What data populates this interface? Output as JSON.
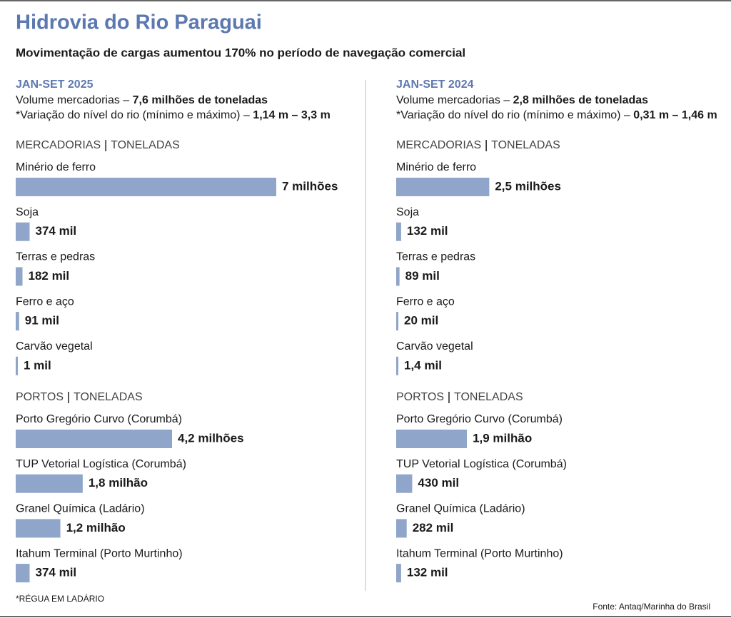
{
  "title": "Hidrovia do Rio Paraguai",
  "subtitle": "Movimentação de cargas aumentou 170% no período de navegação comercial",
  "periods": [
    {
      "heading": "JAN-SET 2025",
      "volume": {
        "label": "Volume mercadorias –",
        "value": "7,6 milhões de toneladas"
      },
      "river": {
        "label": "*Variação do nível do rio (mínimo e máximo) –",
        "value": "1,14 m – 3,3 m"
      }
    },
    {
      "heading": "JAN-SET 2024",
      "volume": {
        "label": "Volume mercadorias –",
        "value": "2,8 milhões de toneladas"
      },
      "river": {
        "label": "*Variação do nível do rio (mínimo e máximo) –",
        "value": "0,31 m – 1,46 m"
      }
    }
  ],
  "chart_data": [
    {
      "type": "bar",
      "orientation": "horizontal",
      "title": "MERCADORIAS",
      "unit": "TONELADAS",
      "color": "#8fa5c9",
      "categories": [
        "Minério de ferro",
        "Soja",
        "Terras e pedras",
        "Ferro e aço",
        "Carvão vegetal"
      ],
      "values": [
        7000000,
        374000,
        182000,
        91000,
        1000
      ],
      "value_labels": [
        "7 milhões",
        "374 mil",
        "182 mil",
        "91 mil",
        "1 mil"
      ]
    },
    {
      "type": "bar",
      "orientation": "horizontal",
      "title": "PORTOS",
      "unit": "TONELADAS",
      "color": "#8fa5c9",
      "categories": [
        "Porto Gregório Curvo (Corumbá)",
        "TUP Vetorial Logística (Corumbá)",
        "Granel Química (Ladário)",
        "Itahum Terminal (Porto Murtinho)"
      ],
      "values": [
        4200000,
        1800000,
        1200000,
        374000
      ],
      "value_labels": [
        "4,2 milhões",
        "1,8 milhão",
        "1,2 milhão",
        "374 mil"
      ]
    },
    {
      "type": "bar",
      "orientation": "horizontal",
      "title": "MERCADORIAS",
      "unit": "TONELADAS",
      "color": "#8fa5c9",
      "categories": [
        "Minério de ferro",
        "Soja",
        "Terras e pedras",
        "Ferro e aço",
        "Carvão vegetal"
      ],
      "values": [
        2500000,
        132000,
        89000,
        20000,
        1400
      ],
      "value_labels": [
        "2,5 milhões",
        "132 mil",
        "89 mil",
        "20 mil",
        "1,4 mil"
      ]
    },
    {
      "type": "bar",
      "orientation": "horizontal",
      "title": "PORTOS",
      "unit": "TONELADAS",
      "color": "#8fa5c9",
      "categories": [
        "Porto Gregório Curvo (Corumbá)",
        "TUP Vetorial Logística (Corumbá)",
        "Granel Química (Ladário)",
        "Itahum Terminal (Porto Murtinho)"
      ],
      "values": [
        1900000,
        430000,
        282000,
        132000
      ],
      "value_labels": [
        "1,9 milhão",
        "430 mil",
        "282 mil",
        "132 mil"
      ]
    }
  ],
  "footnote": "*RÉGUA EM LADÁRIO",
  "source": "Fonte: Antaq/Marinha do Brasil"
}
